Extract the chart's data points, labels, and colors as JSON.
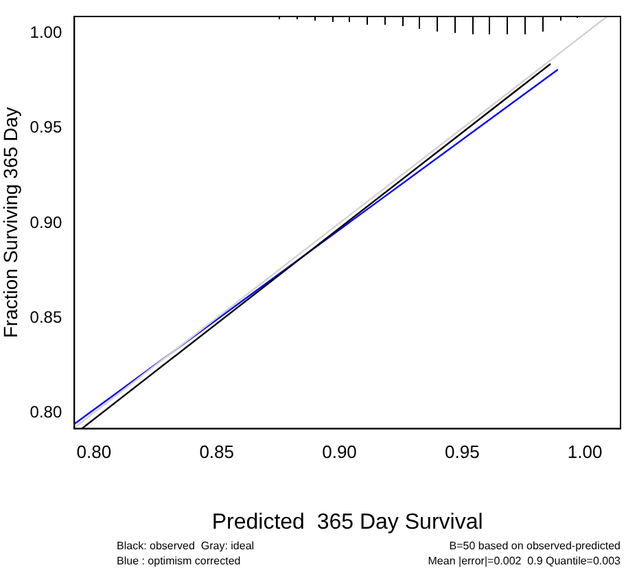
{
  "chart_data": {
    "type": "line",
    "xlabel": "Predicted  365 Day Survival",
    "ylabel": "Fraction Surviving 365 Day",
    "annotations": [
      "Black: observed  Gray: ideal",
      "Blue : optimism corrected",
      "B=50 based on observed-predicted",
      "Mean |error|=0.002  0.9 Quantile=0.003"
    ],
    "series": [
      {
        "color": "#d3d3d3",
        "x": [
          0.792,
          1.009
        ],
        "values": [
          0.792,
          1.009
        ]
      },
      {
        "color": "#000000",
        "x": [
          0.795,
          0.986
        ],
        "values": [
          0.7915,
          0.984
        ]
      },
      {
        "color": "#0000ff",
        "x": [
          0.792,
          0.989
        ],
        "values": [
          0.794,
          0.981
        ]
      }
    ],
    "xlim": [
      0.792,
      1.0145
    ],
    "ylim": [
      0.7915,
      1.009
    ],
    "xticks": [
      {
        "value": 0.8,
        "label": "0.80"
      },
      {
        "value": 0.85,
        "label": "0.85"
      },
      {
        "value": 0.9,
        "label": "0.90"
      },
      {
        "value": 0.95,
        "label": "0.95"
      },
      {
        "value": 1.0,
        "label": "1.00"
      }
    ],
    "yticks": [
      {
        "value": 0.8,
        "label": "0.80"
      },
      {
        "value": 0.85,
        "label": "0.85"
      },
      {
        "value": 0.9,
        "label": "0.90"
      },
      {
        "value": 0.95,
        "label": "0.95"
      },
      {
        "value": 1.0,
        "label": "1.00"
      }
    ],
    "grid": false,
    "legend": false,
    "marker": "none",
    "line_style": "solid"
  }
}
